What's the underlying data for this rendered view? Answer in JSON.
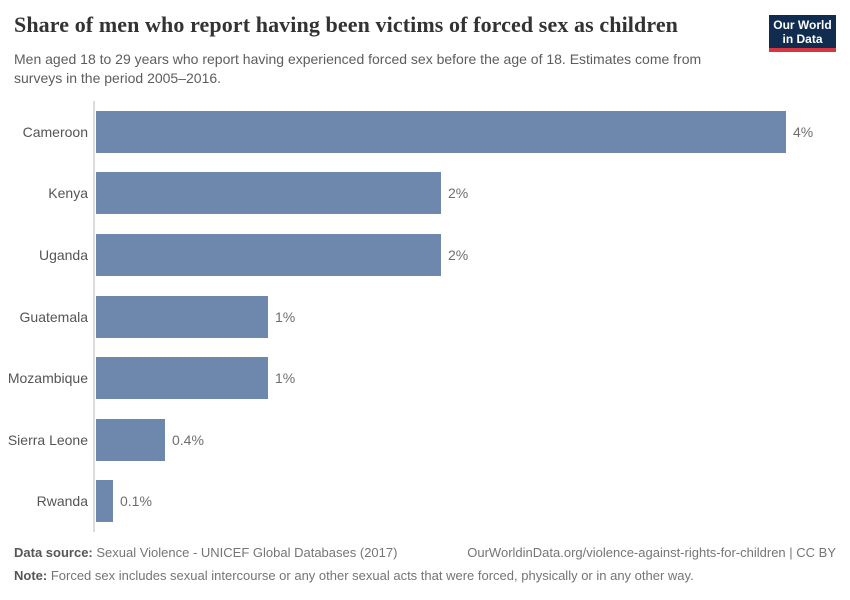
{
  "chart_data": {
    "type": "bar",
    "orientation": "horizontal",
    "title": "Share of men who report having been victims of forced sex as children",
    "subtitle_line1": "Men aged 18 to 29 years who report having experienced forced sex before the age of 18. Estimates come from",
    "subtitle_line2": "surveys in the period 2005–2016.",
    "categories": [
      "Cameroon",
      "Kenya",
      "Uganda",
      "Guatemala",
      "Mozambique",
      "Sierra Leone",
      "Rwanda"
    ],
    "values": [
      4,
      2,
      2,
      1,
      1,
      0.4,
      0.1
    ],
    "value_labels": [
      "4%",
      "2%",
      "2%",
      "1%",
      "1%",
      "0.4%",
      "0.1%"
    ],
    "unit": "%",
    "xlim": [
      0,
      4.35
    ],
    "grid": false,
    "legend": "none",
    "bar_color": "#6d87ad",
    "axis_color": "#dcdcdc"
  },
  "branding": {
    "logo_line1": "Our World",
    "logo_line2": "in Data",
    "logo_bg": "#102d4f",
    "logo_accent": "#d8353f"
  },
  "footer": {
    "datasource_label": "Data source:",
    "datasource_text": " Sexual Violence - UNICEF Global Databases (2017)",
    "url_text": "OurWorldinData.org/violence-against-rights-for-children | CC BY",
    "note_label": "Note:",
    "note_text": " Forced sex includes sexual intercourse or any other sexual acts that were forced, physically or in any other way."
  }
}
